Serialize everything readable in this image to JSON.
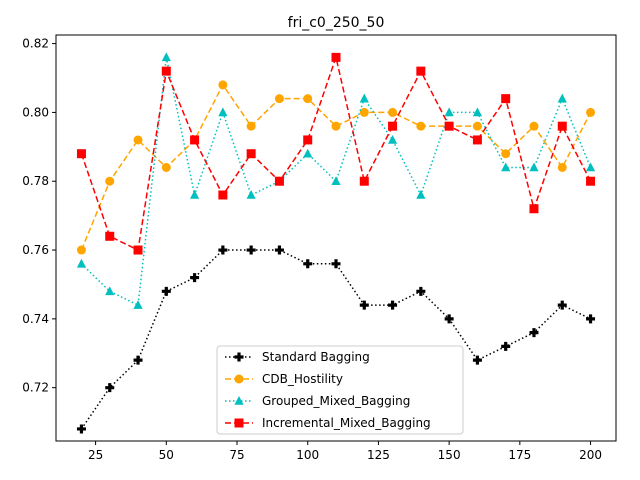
{
  "chart_data": {
    "type": "line",
    "title": "fri_c0_250_50",
    "xlabel": "",
    "ylabel": "",
    "xlim": [
      11,
      209
    ],
    "ylim": [
      0.7045,
      0.8225
    ],
    "x_ticks": [
      25,
      50,
      75,
      100,
      125,
      150,
      175,
      200
    ],
    "y_ticks": [
      0.72,
      0.74,
      0.76,
      0.78,
      0.8,
      0.82
    ],
    "y_tick_labels": [
      "0.72",
      "0.74",
      "0.76",
      "0.78",
      "0.80",
      "0.82"
    ],
    "grid": false,
    "legend_position": "lower center",
    "x": [
      20,
      30,
      40,
      50,
      60,
      70,
      80,
      90,
      100,
      110,
      120,
      130,
      140,
      150,
      160,
      170,
      180,
      190,
      200
    ],
    "series": [
      {
        "name": "Standard Bagging",
        "color": "#000000",
        "line_style": "dotted",
        "marker": "plus",
        "values": [
          0.708,
          0.72,
          0.728,
          0.748,
          0.752,
          0.76,
          0.76,
          0.76,
          0.756,
          0.756,
          0.744,
          0.744,
          0.748,
          0.74,
          0.728,
          0.732,
          0.736,
          0.744,
          0.74
        ]
      },
      {
        "name": "CDB_Hostility",
        "color": "#ffa500",
        "line_style": "dashed",
        "marker": "circle",
        "values": [
          0.76,
          0.78,
          0.792,
          0.784,
          0.792,
          0.808,
          0.796,
          0.804,
          0.804,
          0.796,
          0.8,
          0.8,
          0.796,
          0.796,
          0.796,
          0.788,
          0.796,
          0.784,
          0.8
        ]
      },
      {
        "name": "Grouped_Mixed_Bagging",
        "color": "#00bfbf",
        "line_style": "dotted",
        "marker": "triangle",
        "values": [
          0.756,
          0.748,
          0.744,
          0.816,
          0.776,
          0.8,
          0.776,
          0.78,
          0.788,
          0.78,
          0.804,
          0.792,
          0.776,
          0.8,
          0.8,
          0.784,
          0.784,
          0.804,
          0.784
        ]
      },
      {
        "name": "Incremental_Mixed_Bagging",
        "color": "#ff0000",
        "line_style": "dashed",
        "marker": "square",
        "values": [
          0.788,
          0.764,
          0.76,
          0.812,
          0.792,
          0.776,
          0.788,
          0.78,
          0.792,
          0.816,
          0.78,
          0.796,
          0.812,
          0.796,
          0.792,
          0.804,
          0.772,
          0.796,
          0.78
        ]
      }
    ]
  }
}
